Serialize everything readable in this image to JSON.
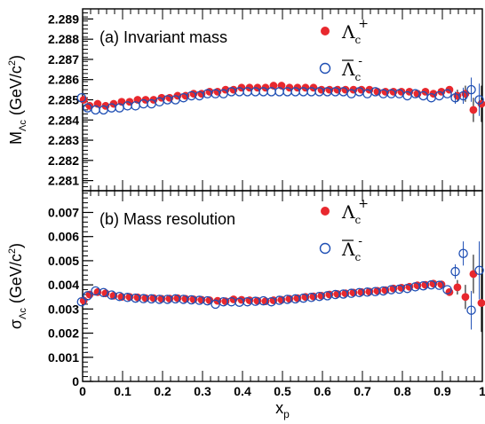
{
  "chart_data": [
    {
      "type": "scatter",
      "panel_label": "(a) Invariant mass",
      "xlabel": "x",
      "xlabel_sub": "p",
      "ylabel": "M",
      "ylabel_sub": "Λc",
      "ylabel_unit": "(GeV/c",
      "ylabel_unit_sup": "2",
      "ylabel_unit_close": ")",
      "xlim": [
        0,
        1
      ],
      "ylim": [
        2.2805,
        2.2895
      ],
      "yticks": [
        "2.281",
        "2.282",
        "2.283",
        "2.284",
        "2.285",
        "2.286",
        "2.287",
        "2.288",
        "2.289"
      ],
      "legend_position": "top-right",
      "series": [
        {
          "name": "Λc+",
          "label_main": "Λ",
          "label_sub": "c",
          "label_sup": "+",
          "marker": "filled-circle",
          "color": "#e8282e",
          "x": [
            0.0,
            0.015,
            0.035,
            0.055,
            0.075,
            0.095,
            0.115,
            0.135,
            0.155,
            0.175,
            0.195,
            0.215,
            0.235,
            0.255,
            0.275,
            0.295,
            0.315,
            0.335,
            0.355,
            0.375,
            0.395,
            0.415,
            0.435,
            0.455,
            0.475,
            0.495,
            0.515,
            0.535,
            0.555,
            0.575,
            0.595,
            0.615,
            0.635,
            0.655,
            0.675,
            0.695,
            0.715,
            0.735,
            0.755,
            0.775,
            0.795,
            0.815,
            0.835,
            0.855,
            0.875,
            0.895,
            0.915,
            0.935,
            0.955,
            0.975,
            0.995
          ],
          "y": [
            2.285,
            2.2847,
            2.2848,
            2.2847,
            2.2848,
            2.2849,
            2.2849,
            2.285,
            2.285,
            2.285,
            2.2851,
            2.2851,
            2.2852,
            2.2852,
            2.2853,
            2.2853,
            2.2854,
            2.2854,
            2.2855,
            2.2855,
            2.2856,
            2.2856,
            2.2856,
            2.2856,
            2.2857,
            2.2857,
            2.2856,
            2.2856,
            2.2856,
            2.2856,
            2.2855,
            2.2855,
            2.2855,
            2.2855,
            2.2855,
            2.2855,
            2.2855,
            2.2854,
            2.2854,
            2.2854,
            2.2854,
            2.2854,
            2.2853,
            2.2854,
            2.2853,
            2.2854,
            2.2855,
            2.2852,
            2.2853,
            2.2845,
            2.2848
          ],
          "yerr": [
            0,
            0,
            0,
            0,
            0,
            0,
            0,
            0,
            0,
            0,
            0,
            0,
            0,
            0,
            0,
            0,
            0,
            0,
            0,
            0,
            0,
            0,
            0,
            0,
            0,
            0,
            0,
            0,
            0,
            0,
            0,
            0,
            0,
            0,
            0,
            0,
            0,
            0,
            0,
            0,
            0,
            0,
            0,
            0,
            0,
            0,
            0,
            0.0003,
            0.0004,
            0.0006,
            0.0009
          ]
        },
        {
          "name": "Λc-bar",
          "label_main": "Λ",
          "label_sub": "c",
          "label_sup": "-",
          "label_overline": true,
          "marker": "open-circle",
          "color": "#1f4fb4",
          "x": [
            0.0,
            0.015,
            0.035,
            0.055,
            0.075,
            0.095,
            0.115,
            0.135,
            0.155,
            0.175,
            0.195,
            0.215,
            0.235,
            0.255,
            0.275,
            0.295,
            0.315,
            0.335,
            0.355,
            0.375,
            0.395,
            0.415,
            0.435,
            0.455,
            0.475,
            0.495,
            0.515,
            0.535,
            0.555,
            0.575,
            0.595,
            0.615,
            0.635,
            0.655,
            0.675,
            0.695,
            0.715,
            0.735,
            0.755,
            0.775,
            0.795,
            0.815,
            0.835,
            0.855,
            0.875,
            0.895,
            0.915,
            0.935,
            0.955,
            0.975,
            0.995
          ],
          "y": [
            2.2851,
            2.2846,
            2.2845,
            2.2845,
            2.2846,
            2.2846,
            2.2847,
            2.2847,
            2.2848,
            2.2848,
            2.2849,
            2.285,
            2.285,
            2.2851,
            2.2852,
            2.2852,
            2.2853,
            2.2853,
            2.2853,
            2.2854,
            2.2854,
            2.2854,
            2.2854,
            2.2854,
            2.2854,
            2.2854,
            2.2854,
            2.2854,
            2.2854,
            2.2854,
            2.2854,
            2.2854,
            2.2854,
            2.2854,
            2.2853,
            2.2854,
            2.2853,
            2.2854,
            2.2853,
            2.2853,
            2.2853,
            2.2852,
            2.2853,
            2.2852,
            2.2851,
            2.2852,
            2.2853,
            2.2851,
            2.2852,
            2.2855,
            2.285
          ],
          "yerr": [
            0,
            0,
            0,
            0,
            0,
            0,
            0,
            0,
            0,
            0,
            0,
            0,
            0,
            0,
            0,
            0,
            0,
            0,
            0,
            0,
            0,
            0,
            0,
            0,
            0,
            0,
            0,
            0,
            0,
            0,
            0,
            0,
            0,
            0,
            0,
            0,
            0,
            0,
            0,
            0,
            0,
            0,
            0,
            0,
            0,
            0,
            0,
            0.0003,
            0.0004,
            0.0006,
            0.0008
          ]
        }
      ]
    },
    {
      "type": "scatter",
      "panel_label": "(b) Mass resolution",
      "xlabel": "x",
      "xlabel_sub": "p",
      "ylabel": "σ",
      "ylabel_sub": "Λc",
      "ylabel_unit": "(GeV/c",
      "ylabel_unit_sup": "2",
      "ylabel_unit_close": ")",
      "xlim": [
        0,
        1
      ],
      "ylim": [
        0,
        0.0079
      ],
      "yticks": [
        "0",
        "0.001",
        "0.002",
        "0.003",
        "0.004",
        "0.005",
        "0.006",
        "0.007"
      ],
      "xticks": [
        "0",
        "0.1",
        "0.2",
        "0.3",
        "0.4",
        "0.5",
        "0.6",
        "0.7",
        "0.8",
        "0.9",
        "1"
      ],
      "legend_position": "top-right",
      "series": [
        {
          "name": "Λc+",
          "label_main": "Λ",
          "label_sub": "c",
          "label_sup": "+",
          "marker": "filled-circle",
          "color": "#e8282e",
          "x": [
            0.0,
            0.015,
            0.035,
            0.055,
            0.075,
            0.095,
            0.115,
            0.135,
            0.155,
            0.175,
            0.195,
            0.215,
            0.235,
            0.255,
            0.275,
            0.295,
            0.315,
            0.335,
            0.355,
            0.375,
            0.395,
            0.415,
            0.435,
            0.455,
            0.475,
            0.495,
            0.515,
            0.535,
            0.555,
            0.575,
            0.595,
            0.615,
            0.635,
            0.655,
            0.675,
            0.695,
            0.715,
            0.735,
            0.755,
            0.775,
            0.795,
            0.815,
            0.835,
            0.855,
            0.875,
            0.895,
            0.915,
            0.935,
            0.955,
            0.975,
            0.995
          ],
          "y": [
            0.00335,
            0.0036,
            0.0037,
            0.00365,
            0.00355,
            0.0035,
            0.0035,
            0.00348,
            0.00345,
            0.00345,
            0.00342,
            0.00343,
            0.00345,
            0.00342,
            0.0034,
            0.00338,
            0.00336,
            0.00334,
            0.00332,
            0.0034,
            0.00338,
            0.00336,
            0.00334,
            0.00332,
            0.00336,
            0.00338,
            0.00342,
            0.00345,
            0.0035,
            0.00352,
            0.00355,
            0.0036,
            0.00362,
            0.00365,
            0.00368,
            0.0037,
            0.00372,
            0.00375,
            0.00378,
            0.00385,
            0.00388,
            0.00392,
            0.00398,
            0.004,
            0.00405,
            0.00402,
            0.0037,
            0.0039,
            0.0035,
            0.00445,
            0.00325
          ],
          "yerr": [
            0,
            0,
            0,
            0,
            0,
            0,
            0,
            0,
            0,
            0,
            0,
            0,
            0,
            0,
            0,
            0,
            0,
            0,
            0,
            0,
            0,
            0,
            0,
            0,
            0,
            0,
            0,
            0,
            0,
            0,
            0,
            0,
            0,
            0,
            0,
            0,
            0,
            0,
            0,
            0,
            0,
            0,
            0,
            0,
            0,
            0,
            0,
            0.0003,
            0.0005,
            0.0008,
            0.0012
          ]
        },
        {
          "name": "Λc-bar",
          "label_main": "Λ",
          "label_sub": "c",
          "label_sup": "-",
          "label_overline": true,
          "marker": "open-circle",
          "color": "#1f4fb4",
          "x": [
            0.0,
            0.015,
            0.035,
            0.055,
            0.075,
            0.095,
            0.115,
            0.135,
            0.155,
            0.175,
            0.195,
            0.215,
            0.235,
            0.255,
            0.275,
            0.295,
            0.315,
            0.335,
            0.355,
            0.375,
            0.395,
            0.415,
            0.435,
            0.455,
            0.475,
            0.495,
            0.515,
            0.535,
            0.555,
            0.575,
            0.595,
            0.615,
            0.635,
            0.655,
            0.675,
            0.695,
            0.715,
            0.735,
            0.755,
            0.775,
            0.795,
            0.815,
            0.835,
            0.855,
            0.875,
            0.895,
            0.915,
            0.935,
            0.955,
            0.975,
            0.995
          ],
          "y": [
            0.0033,
            0.00355,
            0.00375,
            0.00368,
            0.00358,
            0.00352,
            0.00348,
            0.00345,
            0.00343,
            0.00342,
            0.0034,
            0.0034,
            0.00342,
            0.0034,
            0.00338,
            0.00336,
            0.00334,
            0.0032,
            0.0033,
            0.0033,
            0.00328,
            0.0033,
            0.00332,
            0.00334,
            0.0033,
            0.00336,
            0.0034,
            0.00342,
            0.00345,
            0.00348,
            0.00352,
            0.00355,
            0.0036,
            0.00362,
            0.00365,
            0.00368,
            0.0037,
            0.00372,
            0.00375,
            0.0038,
            0.00382,
            0.00385,
            0.00392,
            0.00396,
            0.004,
            0.00398,
            0.0038,
            0.00455,
            0.0053,
            0.00295,
            0.0046
          ],
          "yerr": [
            0,
            0,
            0,
            0,
            0,
            0,
            0,
            0,
            0,
            0,
            0,
            0,
            0,
            0,
            0,
            0,
            0,
            0,
            0,
            0,
            0,
            0,
            0,
            0,
            0,
            0,
            0,
            0,
            0,
            0,
            0,
            0,
            0,
            0,
            0,
            0,
            0,
            0,
            0,
            0,
            0,
            0,
            0,
            0,
            0,
            0,
            0,
            0.0003,
            0.0005,
            0.0008,
            0.0012
          ]
        }
      ]
    }
  ]
}
